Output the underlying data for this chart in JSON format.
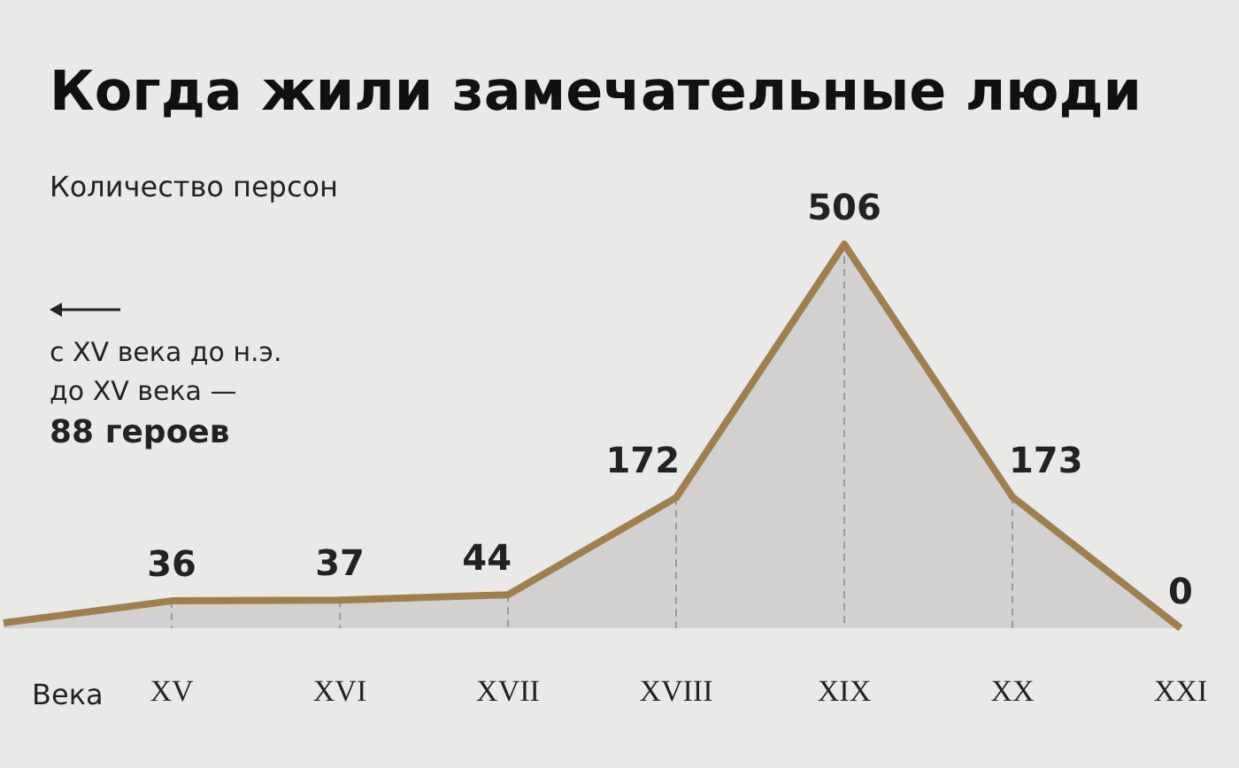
{
  "chart_data": {
    "type": "area",
    "title": "Когда жили замечательные люди",
    "ylabel": "Количество персон",
    "xlabel": "Века",
    "categories": [
      null,
      "XV",
      "XVI",
      "XVII",
      "XVIII",
      "XIX",
      "XX",
      "XXI"
    ],
    "series": [
      {
        "color": "#a07f4e",
        "values": [
          7,
          36,
          37,
          44,
          172,
          506,
          173,
          0
        ],
        "value_labels": [
          null,
          "36",
          "37",
          "44",
          "172",
          "506",
          "173",
          "0"
        ]
      }
    ],
    "ylim": [
      0,
      506
    ],
    "tick_labels": "x",
    "grid": "x",
    "annotations": [
      "с XV века до н.э.",
      "до XV века —",
      "88 героев"
    ]
  }
}
